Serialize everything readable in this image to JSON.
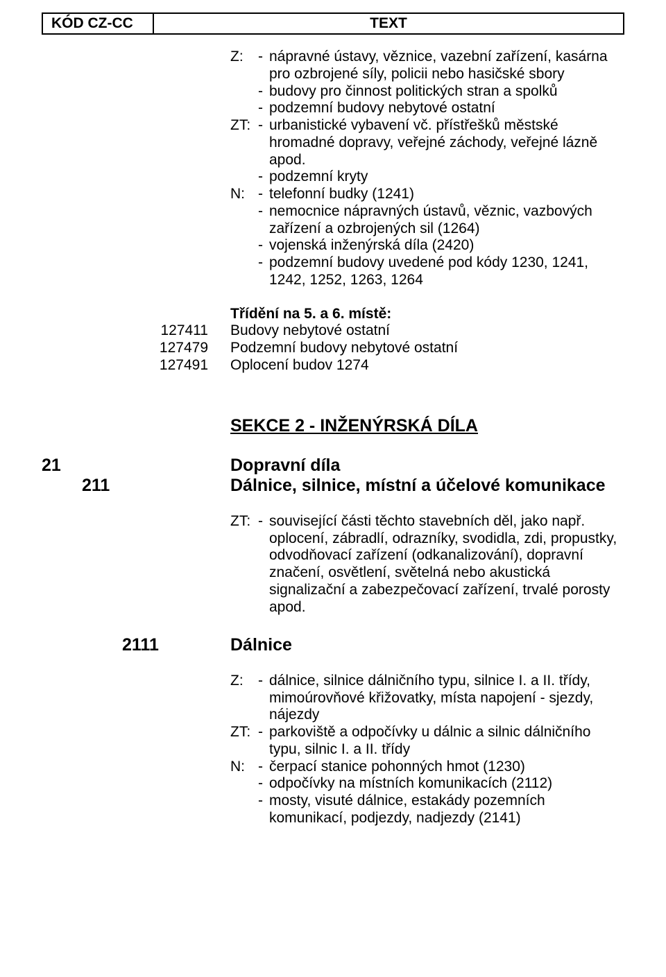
{
  "header": {
    "left": "KÓD CZ-CC",
    "right": "TEXT"
  },
  "block1": {
    "z_label": "Z:",
    "z_items": [
      "nápravné ústavy, věznice, vazební zařízení, kasárna pro ozbrojené síly, policii nebo hasičské sbory",
      "budovy pro činnost politických stran a spolků",
      "podzemní budovy nebytové ostatní"
    ],
    "zt_label": "ZT:",
    "zt_items": [
      "urbanistické vybavení vč. přístřešků městské hromadné dopravy, veřejné záchody, veřejné lázně apod.",
      "podzemní kryty"
    ],
    "n_label": "N:",
    "n_items": [
      "telefonní budky (1241)",
      "nemocnice nápravných ústavů, věznic, vazbových zařízení a ozbrojených sil (1264)",
      "vojenská inženýrská díla (2420)",
      "podzemní budovy uvedené pod kódy 1230, 1241, 1242, 1252, 1263, 1264"
    ]
  },
  "codelist1": {
    "heading": "Třídění na 5. a 6. místě:",
    "rows": [
      {
        "code": "127411",
        "text": "Budovy nebytové ostatní"
      },
      {
        "code": "127479",
        "text": "Podzemní budovy nebytové ostatní"
      },
      {
        "code": "127491",
        "text": "Oplocení budov 1274"
      }
    ]
  },
  "section2": {
    "title": "SEKCE 2 - INŽENÝRSKÁ DÍLA",
    "h21_num": "21",
    "h21_text": "Dopravní díla",
    "h211_num": "211",
    "h211_text": "Dálnice, silnice, místní a účelové komunikace",
    "zt_label": "ZT:",
    "zt_items": [
      "související části těchto stavebních děl, jako např. oplocení, zábradlí, odrazníky, svodidla, zdi, propustky, odvodňovací zařízení (odkanalizování), dopravní značení, osvětlení, světelná nebo akustická signalizační a zabezpečovací zařízení, trvalé porosty apod."
    ],
    "h2111_num": "2111",
    "h2111_text": "Dálnice",
    "sub_z_label": "Z:",
    "sub_z_items": [
      "dálnice, silnice dálničního typu, silnice I. a II. třídy, mimoúrovňové křižovatky, místa napojení - sjezdy, nájezdy"
    ],
    "sub_zt_label": "ZT:",
    "sub_zt_items": [
      "parkoviště a odpočívky u dálnic a silnic dálničního typu, silnic I. a II. třídy"
    ],
    "sub_n_label": "N:",
    "sub_n_items": [
      "čerpací stanice pohonných hmot (1230)",
      "odpočívky na místních komunikacích (2112)",
      "mosty, visuté dálnice, estakády pozemních komunikací, podjezdy, nadjezdy (2141)"
    ]
  }
}
